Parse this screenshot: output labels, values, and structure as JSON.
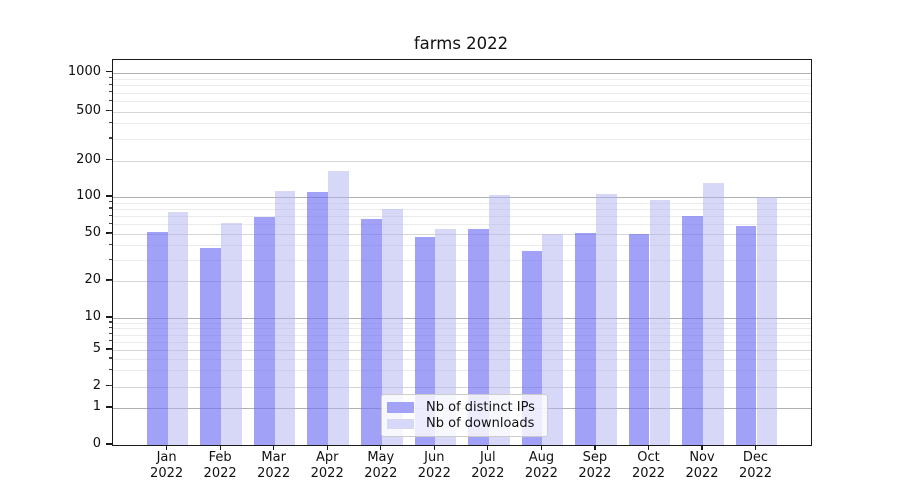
{
  "chart_data": {
    "type": "bar",
    "title": "farms 2022",
    "categories": [
      "Jan",
      "Feb",
      "Mar",
      "Apr",
      "May",
      "Jun",
      "Jul",
      "Aug",
      "Sep",
      "Oct",
      "Nov",
      "Dec"
    ],
    "category_year": "2022",
    "series": [
      {
        "name": "Nb of distinct IPs",
        "color": "#a2a2f9",
        "fill": "rgba(110,110,245,0.65)",
        "values": [
          52,
          38,
          69,
          110,
          66,
          47,
          55,
          36,
          51,
          50,
          70,
          58
        ]
      },
      {
        "name": "Nb of downloads",
        "color": "#d7d7f7",
        "fill": "rgba(175,175,240,0.5)",
        "values": [
          76,
          61,
          113,
          164,
          80,
          55,
          103,
          50,
          106,
          94,
          131,
          101
        ]
      }
    ],
    "y_axis": {
      "scale": "symlog",
      "ticks": [
        1000,
        500,
        200,
        100,
        50,
        20,
        10,
        5,
        2,
        1,
        0
      ],
      "ylim": [
        0,
        1300
      ]
    },
    "x_axis": {
      "tick_label_lines": 2
    },
    "grid": {
      "major": true,
      "minor": true
    },
    "legend": {
      "position": "lower-center",
      "entries": [
        "Nb of distinct IPs",
        "Nb of downloads"
      ]
    }
  }
}
